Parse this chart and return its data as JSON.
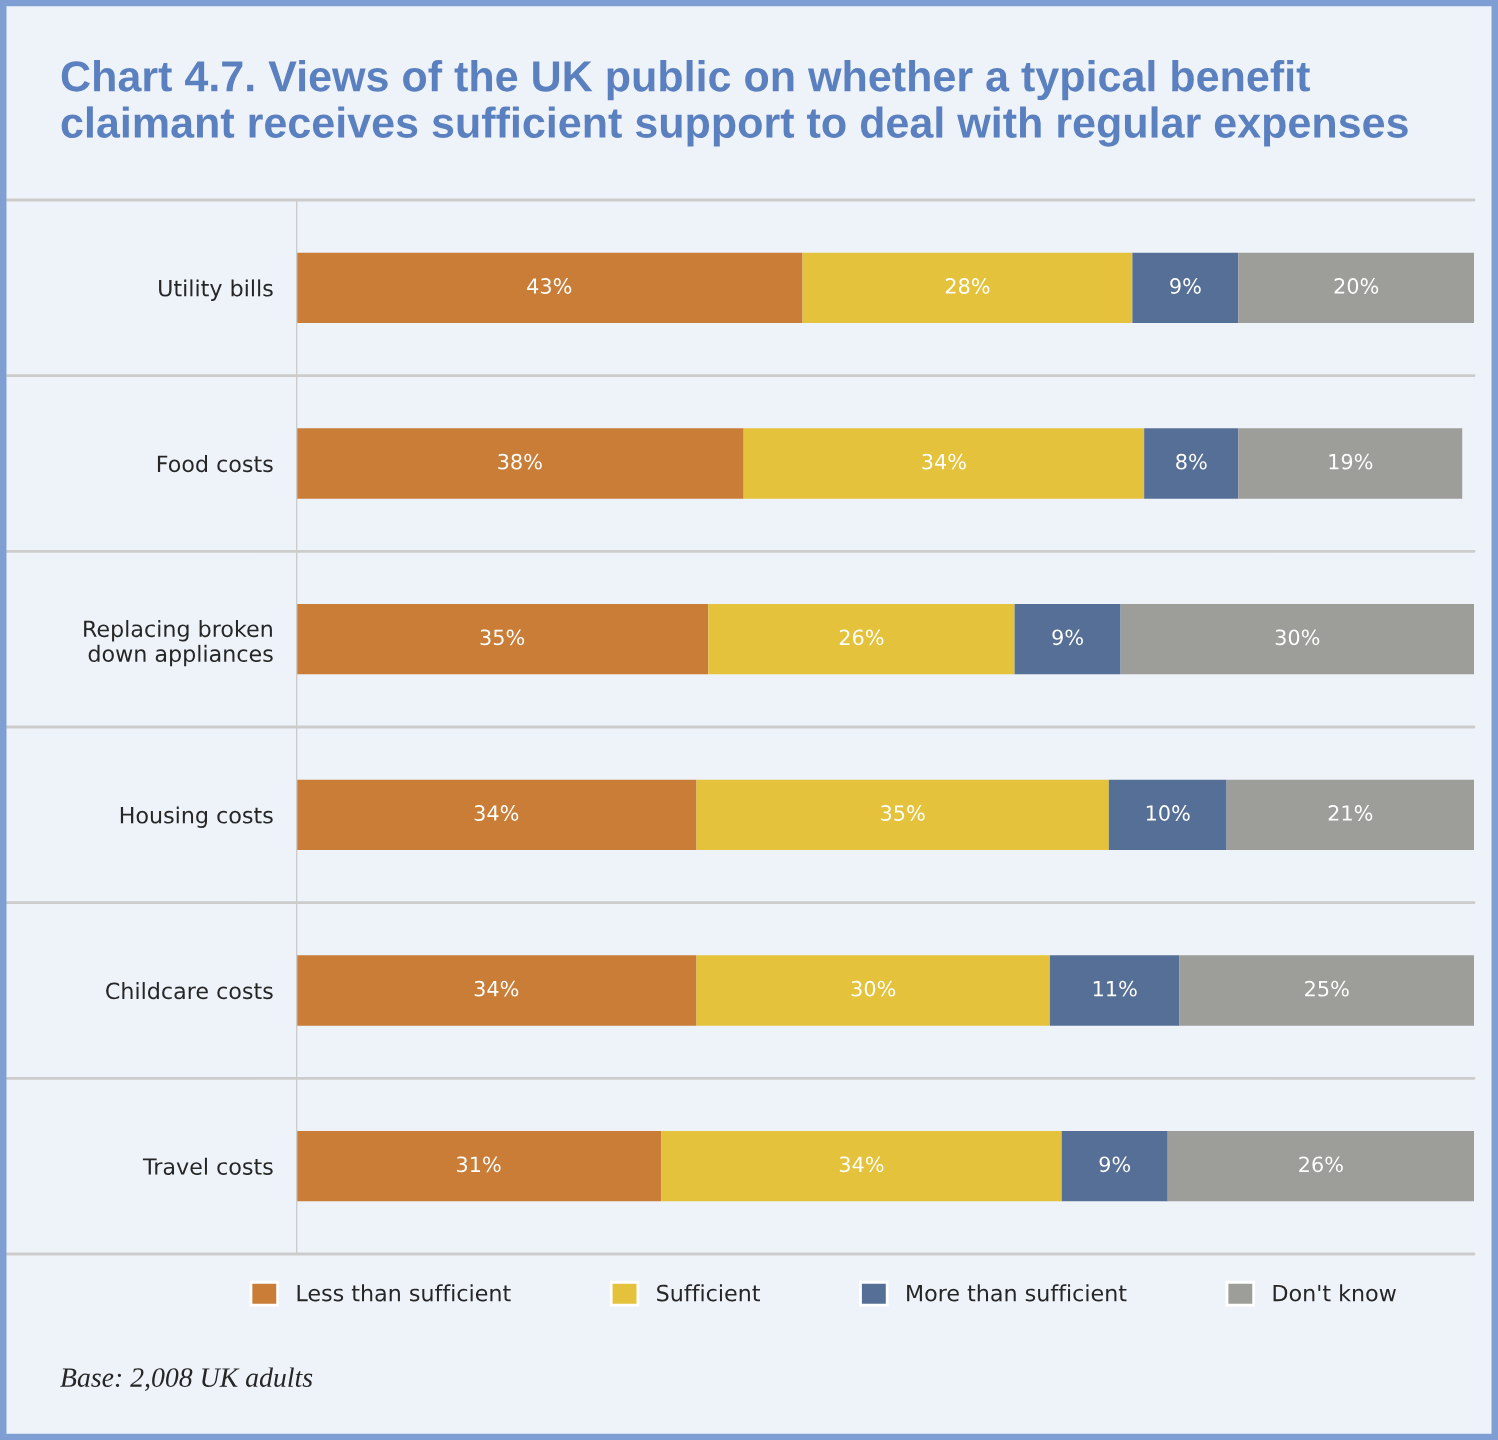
{
  "chart_data": {
    "type": "bar",
    "orientation": "horizontal",
    "stacked": true,
    "title": "Chart 4.7. Views of the UK public on whether a typical benefit claimant receives sufficient support to deal with regular expenses",
    "categories": [
      "Utility bills",
      "Food costs",
      "Replacing broken\ndown appliances",
      "Housing costs",
      "Childcare costs",
      "Travel costs"
    ],
    "series": [
      {
        "name": "Less than sufficient",
        "color": "#c97d37",
        "values": [
          43,
          38,
          35,
          34,
          34,
          31
        ],
        "value_labels": [
          "43%",
          "38%",
          "35%",
          "34%",
          "34%",
          "31%"
        ]
      },
      {
        "name": "Sufficient",
        "color": "#e4c23b",
        "values": [
          28,
          34,
          26,
          35,
          30,
          34
        ],
        "value_labels": [
          "28%",
          "34%",
          "26%",
          "35%",
          "30%",
          "34%"
        ]
      },
      {
        "name": "More than sufficient",
        "color": "#566f96",
        "values": [
          9,
          8,
          9,
          10,
          11,
          9
        ],
        "value_labels": [
          "9%",
          "8%",
          "9%",
          "10%",
          "11%",
          "9%"
        ]
      },
      {
        "name": "Don't know",
        "color": "#9d9d9a",
        "values": [
          20,
          19,
          30,
          21,
          25,
          26
        ],
        "value_labels": [
          "20%",
          "19%",
          "30%",
          "21%",
          "25%",
          "26%"
        ]
      }
    ],
    "tick_labels": "y",
    "legend": "bottom",
    "annotations": [
      "Base: 2,008 UK adults"
    ]
  }
}
